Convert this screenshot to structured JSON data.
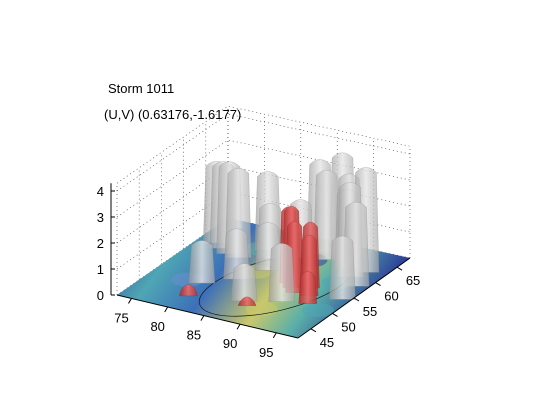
{
  "chart_data": {
    "type": "surface3d",
    "title": "Storm 1011",
    "subtitle": "(U,V) (0.63176,-1.6177)",
    "x_ticks": [
      "75",
      "80",
      "85",
      "90",
      "95"
    ],
    "y_ticks": [
      "45",
      "50",
      "55",
      "60",
      "65"
    ],
    "z_ticks": [
      "0",
      "1",
      "2",
      "3",
      "4"
    ],
    "xlim": [
      73,
      98
    ],
    "ylim": [
      42,
      68
    ],
    "zlim": [
      0,
      4.3
    ],
    "grid": true,
    "colors": {
      "isosurface_low": "#c8c8c8",
      "isosurface_high": "#d23c3c",
      "floor_low": "#2c3f9a",
      "floor_mid": "#4fa6b4",
      "floor_high": "#c9c86a"
    },
    "gray_columns": [
      {
        "x": 75.5,
        "y": 61,
        "h": 3.1
      },
      {
        "x": 77,
        "y": 60,
        "h": 3.3
      },
      {
        "x": 78.5,
        "y": 59,
        "h": 3.5
      },
      {
        "x": 80,
        "y": 58.5,
        "h": 3.4
      },
      {
        "x": 82,
        "y": 62,
        "h": 3.0
      },
      {
        "x": 83.5,
        "y": 60,
        "h": 2.1
      },
      {
        "x": 85,
        "y": 57,
        "h": 1.8
      },
      {
        "x": 86.5,
        "y": 62,
        "h": 2.2
      },
      {
        "x": 88,
        "y": 64,
        "h": 3.6
      },
      {
        "x": 89.5,
        "y": 63,
        "h": 3.4
      },
      {
        "x": 90.5,
        "y": 65,
        "h": 3.9
      },
      {
        "x": 92,
        "y": 64,
        "h": 3.3
      },
      {
        "x": 93,
        "y": 62,
        "h": 3.0
      },
      {
        "x": 94.5,
        "y": 60,
        "h": 3.6
      },
      {
        "x": 95.5,
        "y": 62,
        "h": 4.0
      },
      {
        "x": 96.5,
        "y": 58,
        "h": 3.2
      },
      {
        "x": 97,
        "y": 54,
        "h": 2.4
      },
      {
        "x": 80,
        "y": 50,
        "h": 1.6
      },
      {
        "x": 83,
        "y": 53,
        "h": 1.9
      },
      {
        "x": 87,
        "y": 48,
        "h": 1.4
      },
      {
        "x": 91,
        "y": 50,
        "h": 2.2
      }
    ],
    "red_columns": [
      {
        "x": 89,
        "y": 55,
        "h": 2.9
      },
      {
        "x": 90,
        "y": 54,
        "h": 3.1
      },
      {
        "x": 91,
        "y": 53,
        "h": 2.7
      },
      {
        "x": 92,
        "y": 55,
        "h": 2.5
      },
      {
        "x": 93,
        "y": 53,
        "h": 2.3
      },
      {
        "x": 94,
        "y": 51,
        "h": 1.2
      },
      {
        "x": 80.5,
        "y": 46,
        "h": 0.4
      },
      {
        "x": 88,
        "y": 47,
        "h": 0.3
      }
    ]
  }
}
